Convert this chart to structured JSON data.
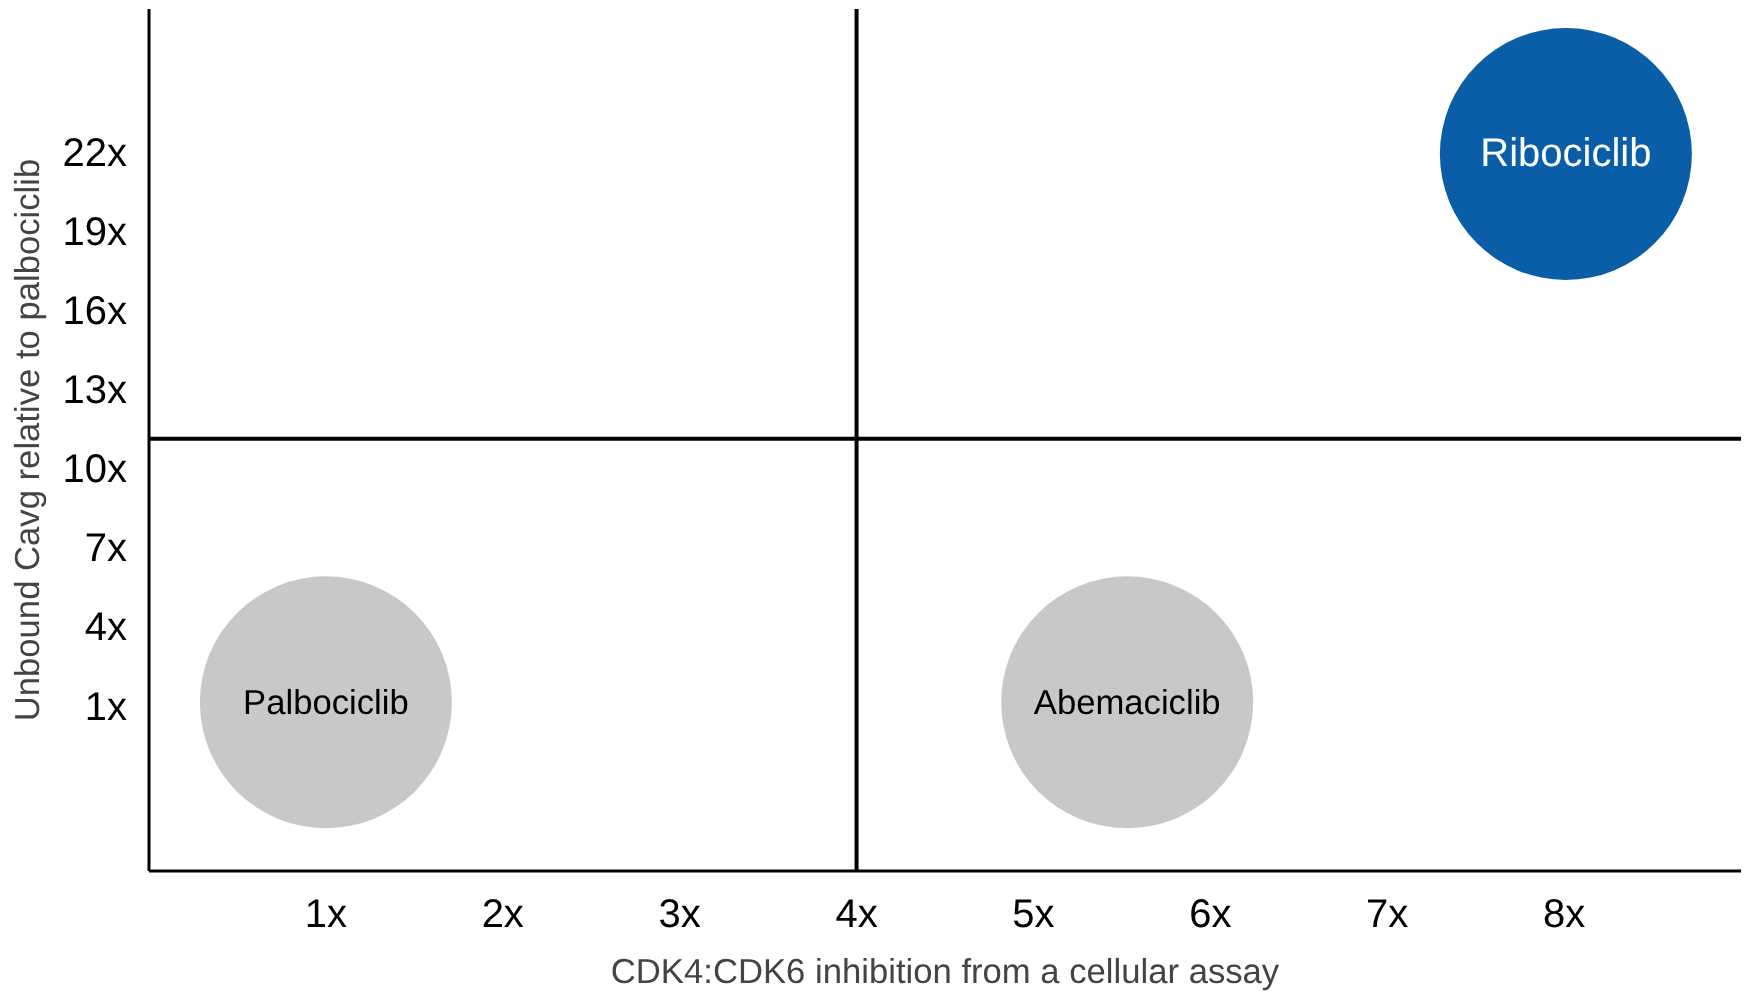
{
  "chart_data": {
    "type": "bubble",
    "xlabel": "CDK4:CDK6 inhibition from a cellular assay",
    "ylabel": "Unbound Cavg relative to palbociclib",
    "xlim": [
      0,
      9
    ],
    "ylim": [
      -5.2,
      27.5
    ],
    "xticks": [
      {
        "value": 1,
        "label": "1x"
      },
      {
        "value": 2,
        "label": "2x"
      },
      {
        "value": 3,
        "label": "3x"
      },
      {
        "value": 4,
        "label": "4x"
      },
      {
        "value": 5,
        "label": "5x"
      },
      {
        "value": 6,
        "label": "6x"
      },
      {
        "value": 7,
        "label": "7x"
      },
      {
        "value": 8,
        "label": "8x"
      }
    ],
    "yticks": [
      {
        "value": 1,
        "label": "1x"
      },
      {
        "value": 4,
        "label": "4x"
      },
      {
        "value": 7,
        "label": "7x"
      },
      {
        "value": 10,
        "label": "10x"
      },
      {
        "value": 13,
        "label": "13x"
      },
      {
        "value": 16,
        "label": "16x"
      },
      {
        "value": 19,
        "label": "19x"
      },
      {
        "value": 22,
        "label": "22x"
      }
    ],
    "grid": false,
    "legend": false,
    "ref_lines": [
      {
        "axis": "x",
        "value": 4,
        "color": "#000000"
      },
      {
        "axis": "y",
        "value": 11.2,
        "color": "#000000"
      }
    ],
    "series": [
      {
        "name": "Palbociclib",
        "color": "#c8c8c8",
        "x": [
          1.0
        ],
        "values": [
          1.2
        ],
        "sizes": [
          1
        ]
      },
      {
        "name": "Abemaciclib",
        "color": "#c8c8c8",
        "x": [
          5.53
        ],
        "values": [
          1.2
        ],
        "sizes": [
          1
        ]
      },
      {
        "name": "Ribociclib",
        "color": "#0a5ea8",
        "x": [
          8.01
        ],
        "values": [
          22
        ],
        "sizes": [
          1
        ]
      }
    ]
  }
}
